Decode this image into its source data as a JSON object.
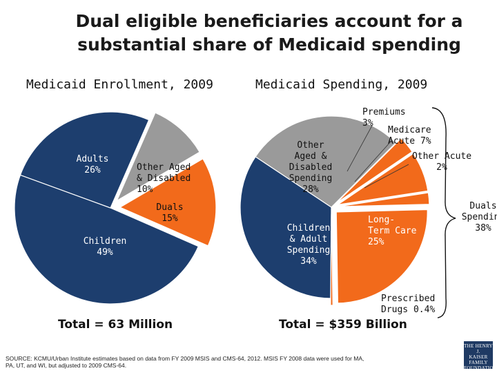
{
  "slide": {
    "title_line1": "Dual eligible beneficiaries account for a",
    "title_line2": "substantial share of Medicaid spending",
    "source_text": "SOURCE: KCMU/Urban Institute estimates based on data from FY 2009 MSIS and CMS-64, 2012. MSIS FY 2008 data were used for MA, PA, UT, and WI, but adjusted to 2009 CMS-64.",
    "logo_lines": [
      "THE HENRY J.",
      "KAISER",
      "FAMILY",
      "FOUNDATION"
    ]
  },
  "colors": {
    "navy": "#1d3e6e",
    "gray": "#9a9a9a",
    "orange": "#f26a1b",
    "white": "#ffffff"
  },
  "chart_data": [
    {
      "type": "pie",
      "title": "Medicaid Enrollment, 2009",
      "total_label": "Total = 63 Million",
      "slices": [
        {
          "name": "Adults",
          "value": 26,
          "value_label": "26%",
          "color": "#1d3e6e",
          "label_lines": [
            "Adults",
            "26%"
          ]
        },
        {
          "name": "Other Aged & Disabled",
          "value": 10,
          "value_label": "10%",
          "color": "#9a9a9a",
          "label_lines": [
            "Other Aged",
            "& Disabled",
            "10%"
          ]
        },
        {
          "name": "Duals",
          "value": 15,
          "value_label": "15%",
          "color": "#f26a1b",
          "label_lines": [
            "Duals",
            "15%"
          ]
        },
        {
          "name": "Children",
          "value": 49,
          "value_label": "49%",
          "color": "#1d3e6e",
          "label_lines": [
            "Children",
            "49%"
          ]
        }
      ]
    },
    {
      "type": "pie",
      "title": "Medicaid Spending, 2009",
      "total_label": "Total = $359 Billion",
      "slices": [
        {
          "name": "Children & Adult Spending",
          "value": 34,
          "value_label": "34%",
          "color": "#1d3e6e",
          "label_lines": [
            "Children",
            "& Adult",
            "Spending",
            "34%"
          ]
        },
        {
          "name": "Other Aged & Disabled Spending",
          "value": 28,
          "value_label": "28%",
          "color": "#9a9a9a",
          "label_lines": [
            "Other",
            "Aged &",
            "Disabled",
            "Spending",
            "28%"
          ]
        },
        {
          "name": "Premiums",
          "value": 3,
          "value_label": "3%",
          "color": "#f26a1b",
          "label_lines": [
            "Premiums",
            "3%"
          ]
        },
        {
          "name": "Medicare Acute",
          "value": 7,
          "value_label": "7%",
          "color": "#f26a1b",
          "label_lines": [
            "Medicare",
            "Acute 7%"
          ]
        },
        {
          "name": "Other Acute",
          "value": 2,
          "value_label": "2%",
          "color": "#f26a1b",
          "label_lines": [
            "Other Acute",
            "2%"
          ]
        },
        {
          "name": "Long-Term Care",
          "value": 25,
          "value_label": "25%",
          "color": "#f26a1b",
          "label_lines": [
            "Long-",
            "Term Care",
            "25%"
          ]
        },
        {
          "name": "Prescribed Drugs",
          "value": 0.4,
          "value_label": "0.4%",
          "color": "#f26a1b",
          "label_lines": [
            "Prescribed",
            "Drugs 0.4%"
          ]
        }
      ],
      "bracket_label_lines": [
        "Duals",
        "Spending",
        "38%"
      ]
    }
  ]
}
